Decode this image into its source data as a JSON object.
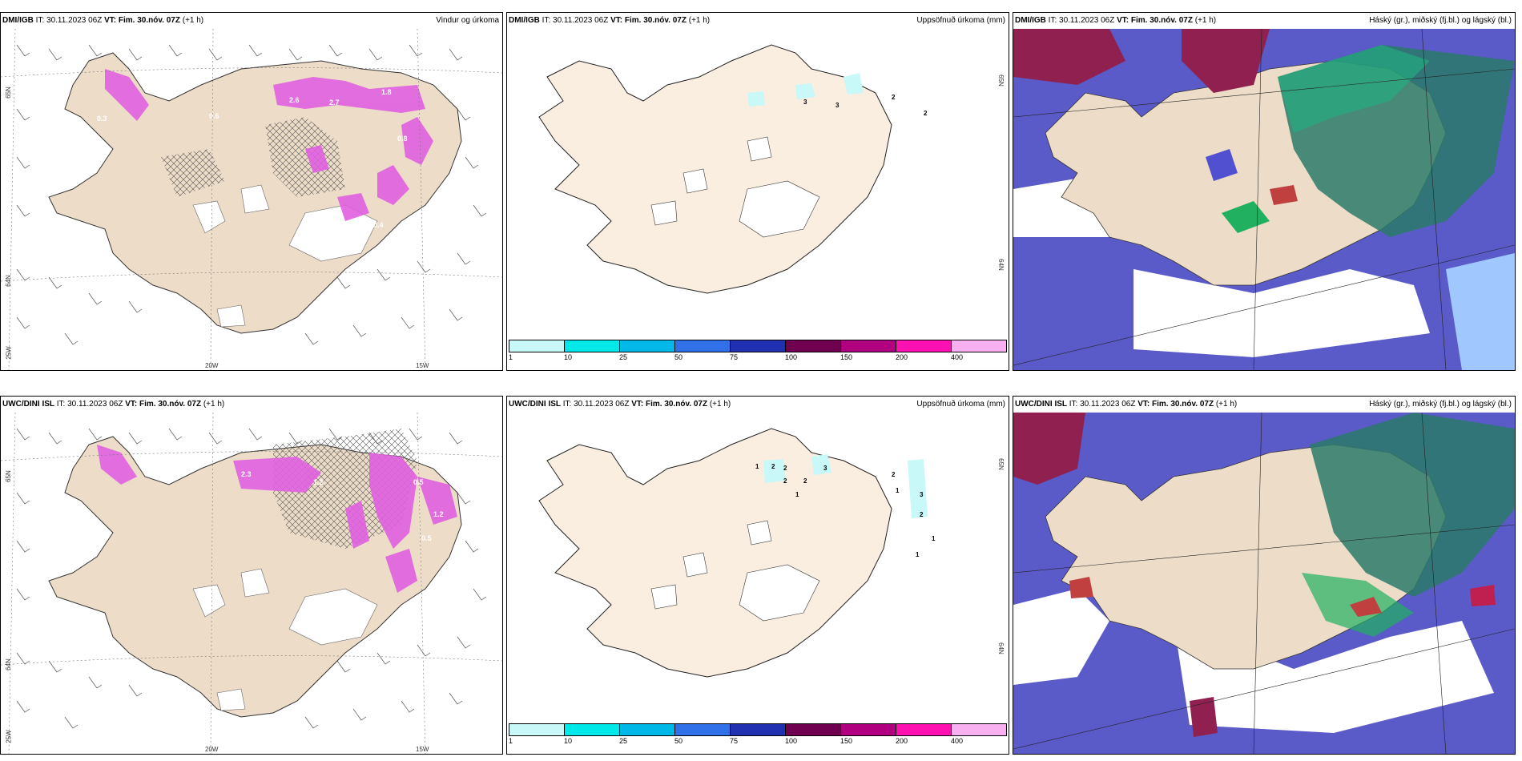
{
  "panels": [
    {
      "id": "p1",
      "model": "DMI/IGB",
      "it": "IT: 30.11.2023 06Z",
      "vt_label": "VT: Fim. 30.nóv. 07Z",
      "lead": "(+1 h)",
      "product": "Vindur og úrkoma",
      "lat_labels": [
        "65N",
        "64N"
      ],
      "lon_labels": [
        "25W",
        "20W",
        "15W"
      ],
      "value_labels": [
        "0.3",
        "0.6",
        "2.6",
        "2.7",
        "1.8",
        "0.8",
        "0.3",
        "0.4"
      ]
    },
    {
      "id": "p2",
      "model": "DMI/IGB",
      "it": "IT: 30.11.2023 06Z",
      "vt_label": "VT: Fim. 30.nóv. 07Z",
      "lead": "(+1 h)",
      "product": "Uppsöfnuð úrkoma (mm)",
      "lat_labels": [
        "65N",
        "64N"
      ],
      "value_labels": [
        "3",
        "3",
        "2",
        "2"
      ]
    },
    {
      "id": "p3",
      "model": "DMI/IGB",
      "it": "IT: 30.11.2023 06Z",
      "vt_label": "VT: Fim. 30.nóv. 07Z",
      "lead": "(+1 h)",
      "product": "Háský (gr.), miðský (fj.bl.) og lágský (bl.)"
    },
    {
      "id": "p4",
      "model": "UWC/DINI ISL",
      "it": "IT: 30.11.2023 06Z",
      "vt_label": "VT: Fim. 30.nóv. 07Z",
      "lead": "(+1 h)",
      "product": "",
      "lat_labels": [
        "65N",
        "64N"
      ],
      "lon_labels": [
        "25W",
        "20W",
        "15W"
      ],
      "value_labels": [
        "2.3",
        "1.2",
        "0.5",
        "1.2",
        "0.5",
        "0.5"
      ]
    },
    {
      "id": "p5",
      "model": "UWC/DINI ISL",
      "it": "IT: 30.11.2023 06Z",
      "vt_label": "VT: Fim. 30.nóv. 07Z",
      "lead": "(+1 h)",
      "product": "Uppsöfnuð úrkoma (mm)",
      "lat_labels": [
        "65N",
        "64N"
      ],
      "value_labels": [
        "1",
        "2",
        "2",
        "3",
        "2",
        "2",
        "1",
        "1",
        "2",
        "3",
        "2",
        "1",
        "1"
      ]
    },
    {
      "id": "p6",
      "model": "UWC/DINI ISL",
      "it": "IT: 30.11.2023 06Z",
      "vt_label": "VT: Fim. 30.nóv. 07Z",
      "lead": "(+1 h)",
      "product": "Háský (gr.), miðský (fj.bl.) og lágský (bl.)"
    }
  ],
  "legend": {
    "ticks": [
      "1",
      "10",
      "25",
      "50",
      "75",
      "100",
      "150",
      "200",
      "400"
    ],
    "colors": [
      "#c8f8f8",
      "#00e8e8",
      "#00b8e8",
      "#3070e8",
      "#2030b0",
      "#700050",
      "#b00080",
      "#ff10b0",
      "#f8b0f0"
    ]
  },
  "colors": {
    "land": "#eddcc8",
    "land_light": "#faeee0",
    "precip": "#e060e0",
    "low_cloud": "#4050d0",
    "mid_cloud": "#a0b0ff",
    "high_cloud": "#20a080",
    "top_cloud": "#902050"
  }
}
